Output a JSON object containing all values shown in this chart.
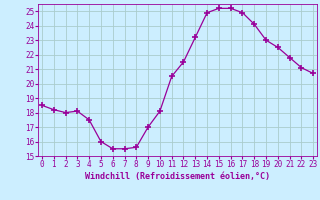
{
  "x": [
    0,
    1,
    2,
    3,
    4,
    5,
    6,
    7,
    8,
    9,
    10,
    11,
    12,
    13,
    14,
    15,
    16,
    17,
    18,
    19,
    20,
    21,
    22,
    23
  ],
  "y": [
    18.5,
    18.2,
    18.0,
    18.1,
    17.5,
    16.0,
    15.5,
    15.5,
    15.6,
    17.0,
    18.1,
    20.5,
    21.5,
    23.2,
    24.9,
    25.2,
    25.2,
    24.9,
    24.1,
    23.0,
    22.5,
    21.8,
    21.1,
    20.7
  ],
  "line_color": "#990099",
  "marker": "+",
  "marker_size": 4,
  "marker_lw": 1.2,
  "bg_color": "#cceeff",
  "grid_color": "#aacccc",
  "ylim": [
    15,
    25.5
  ],
  "xlim": [
    -0.3,
    23.3
  ],
  "yticks": [
    15,
    16,
    17,
    18,
    19,
    20,
    21,
    22,
    23,
    24,
    25
  ],
  "xticks": [
    0,
    1,
    2,
    3,
    4,
    5,
    6,
    7,
    8,
    9,
    10,
    11,
    12,
    13,
    14,
    15,
    16,
    17,
    18,
    19,
    20,
    21,
    22,
    23
  ],
  "xlabel": "Windchill (Refroidissement éolien,°C)",
  "xlabel_color": "#990099",
  "tick_color": "#990099",
  "spine_color": "#990099",
  "tick_fontsize": 5.5,
  "xlabel_fontsize": 6.0
}
